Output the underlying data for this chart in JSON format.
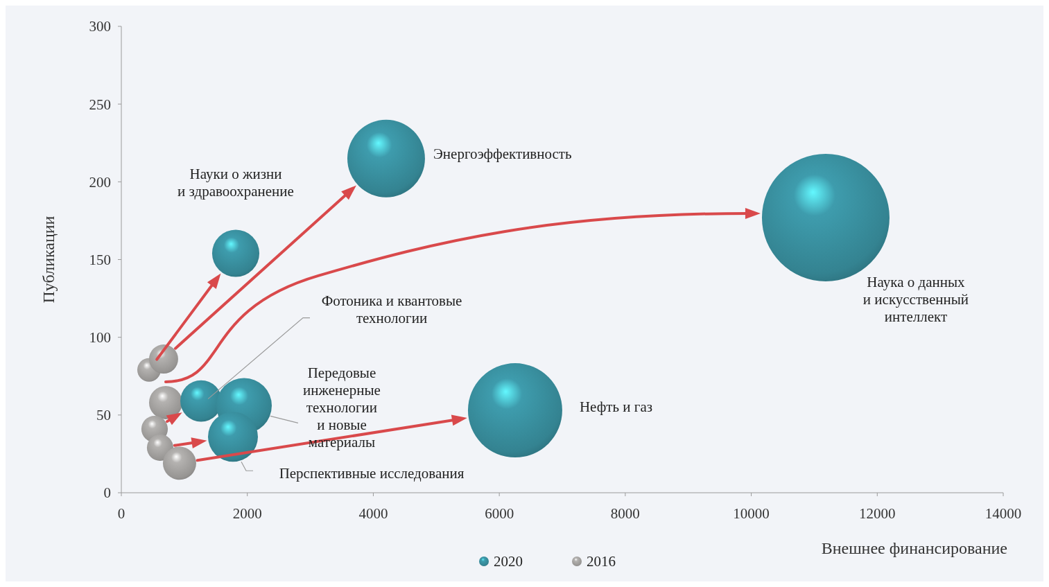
{
  "chart_data": {
    "type": "bubble",
    "xlabel": "Внешнее финансирование",
    "ylabel": "Публикации",
    "xlim": [
      0,
      14000
    ],
    "xticks": [
      0,
      2000,
      4000,
      6000,
      8000,
      10000,
      12000,
      14000
    ],
    "ylim": [
      0,
      300
    ],
    "yticks": [
      0,
      50,
      100,
      150,
      200,
      250,
      300
    ],
    "grid": false,
    "legend": "bottom",
    "series": [
      {
        "name": "2020",
        "color": "#3e9cad",
        "x": [
          1816,
          4204,
          11182,
          1266,
          1948,
          1772,
          6251
        ],
        "values": [
          154,
          215,
          177,
          59,
          56,
          36,
          53
        ],
        "sizes": [
          0.137,
          0.37,
          1,
          0.106,
          0.189,
          0.153,
          0.546
        ]
      },
      {
        "name": "2016",
        "color": "#b4b2b0",
        "x": [
          440,
          671,
          704,
          528,
          null,
          616,
          924
        ],
        "values": [
          79,
          86,
          58,
          41,
          null,
          29,
          19
        ],
        "sizes": [
          0.034,
          0.052,
          0.068,
          0.043,
          null,
          0.043,
          0.068
        ]
      }
    ],
    "annotations": [
      "Науки о жизни\nи здравоохранение",
      "Энергоэффективность",
      "Наука о данных\nи искусственный\nинтеллект",
      "Фотоника и квантовые\nтехнологии",
      "Передовые\nинженерные\nтехнологии\nи новые\nматериалы",
      "Перспективные исследования",
      "Нефть и газ"
    ]
  }
}
